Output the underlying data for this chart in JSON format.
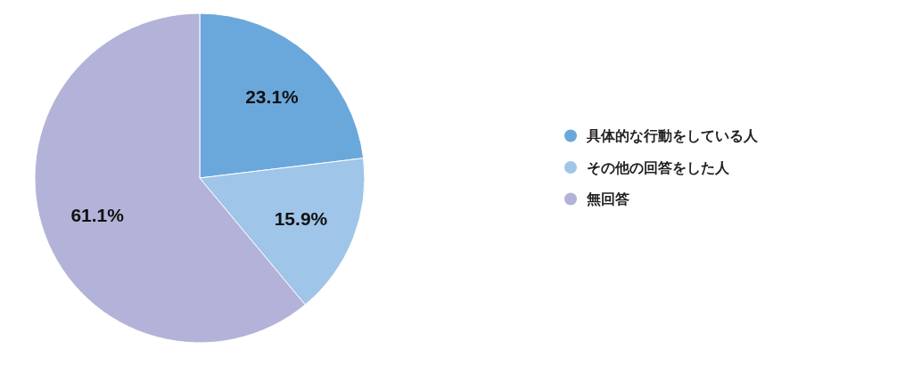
{
  "chart_data": {
    "type": "pie",
    "categories": [
      "具体的な行動をしている人",
      "その他の回答をした人",
      "無回答"
    ],
    "values": [
      23.1,
      15.9,
      61.1
    ],
    "colors": [
      "#6aa8dc",
      "#9fc5e8",
      "#b3b3d9"
    ],
    "value_labels": [
      "23.1%",
      "15.9%",
      "61.1%"
    ],
    "legend": "right"
  }
}
